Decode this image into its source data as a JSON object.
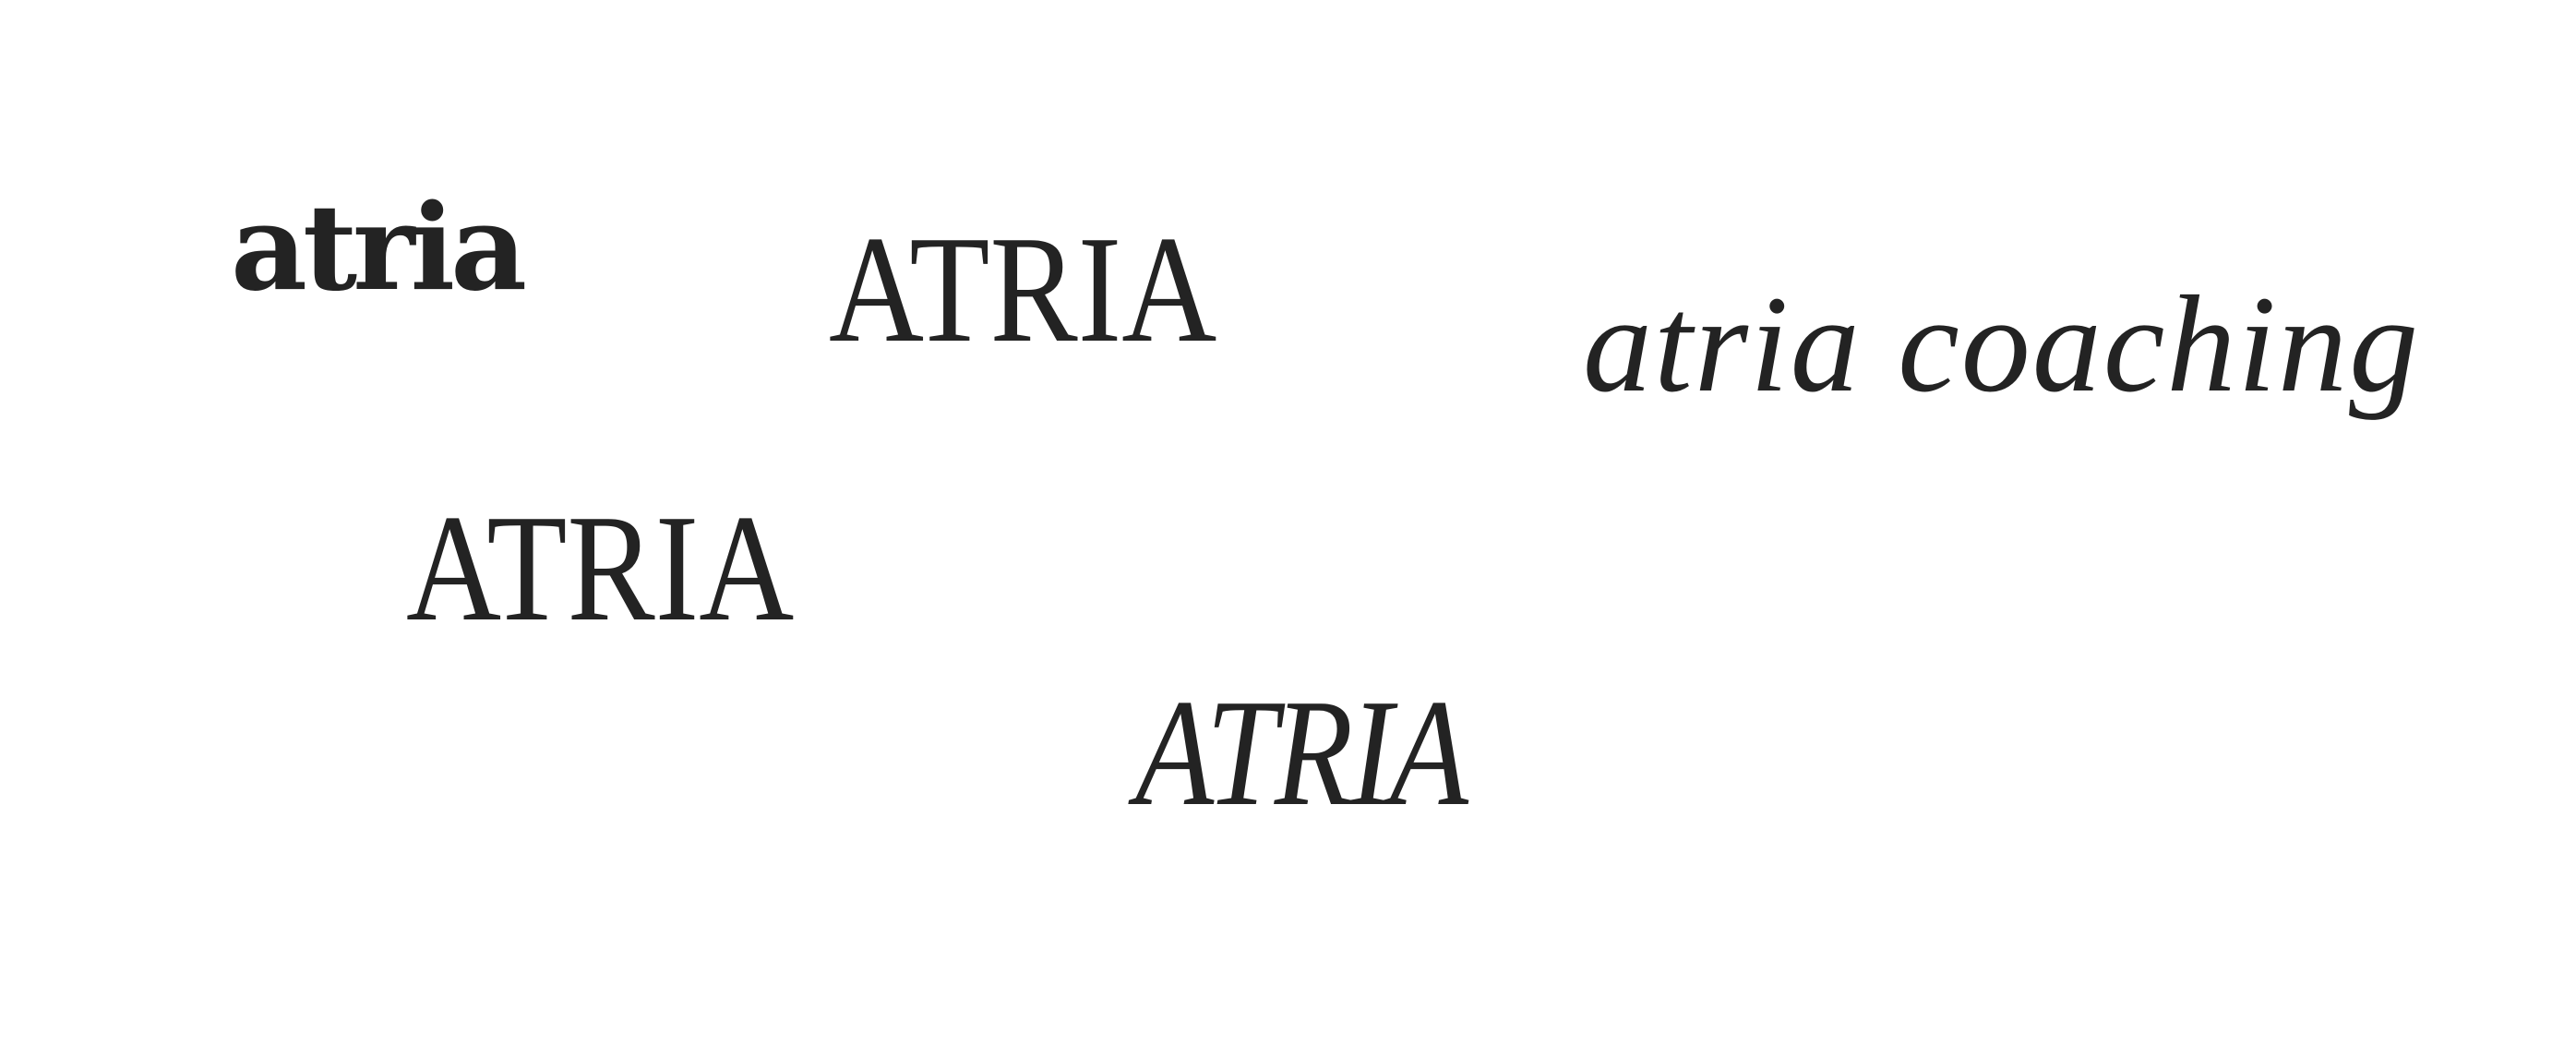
{
  "wordmarks": [
    {
      "text": "atria"
    },
    {
      "text": "ATRIA"
    },
    {
      "text": "atria coaching"
    },
    {
      "text": "ATRIA"
    },
    {
      "text": "ATRIA"
    }
  ],
  "colors": {
    "ink": "#232323",
    "background": "#ffffff"
  }
}
